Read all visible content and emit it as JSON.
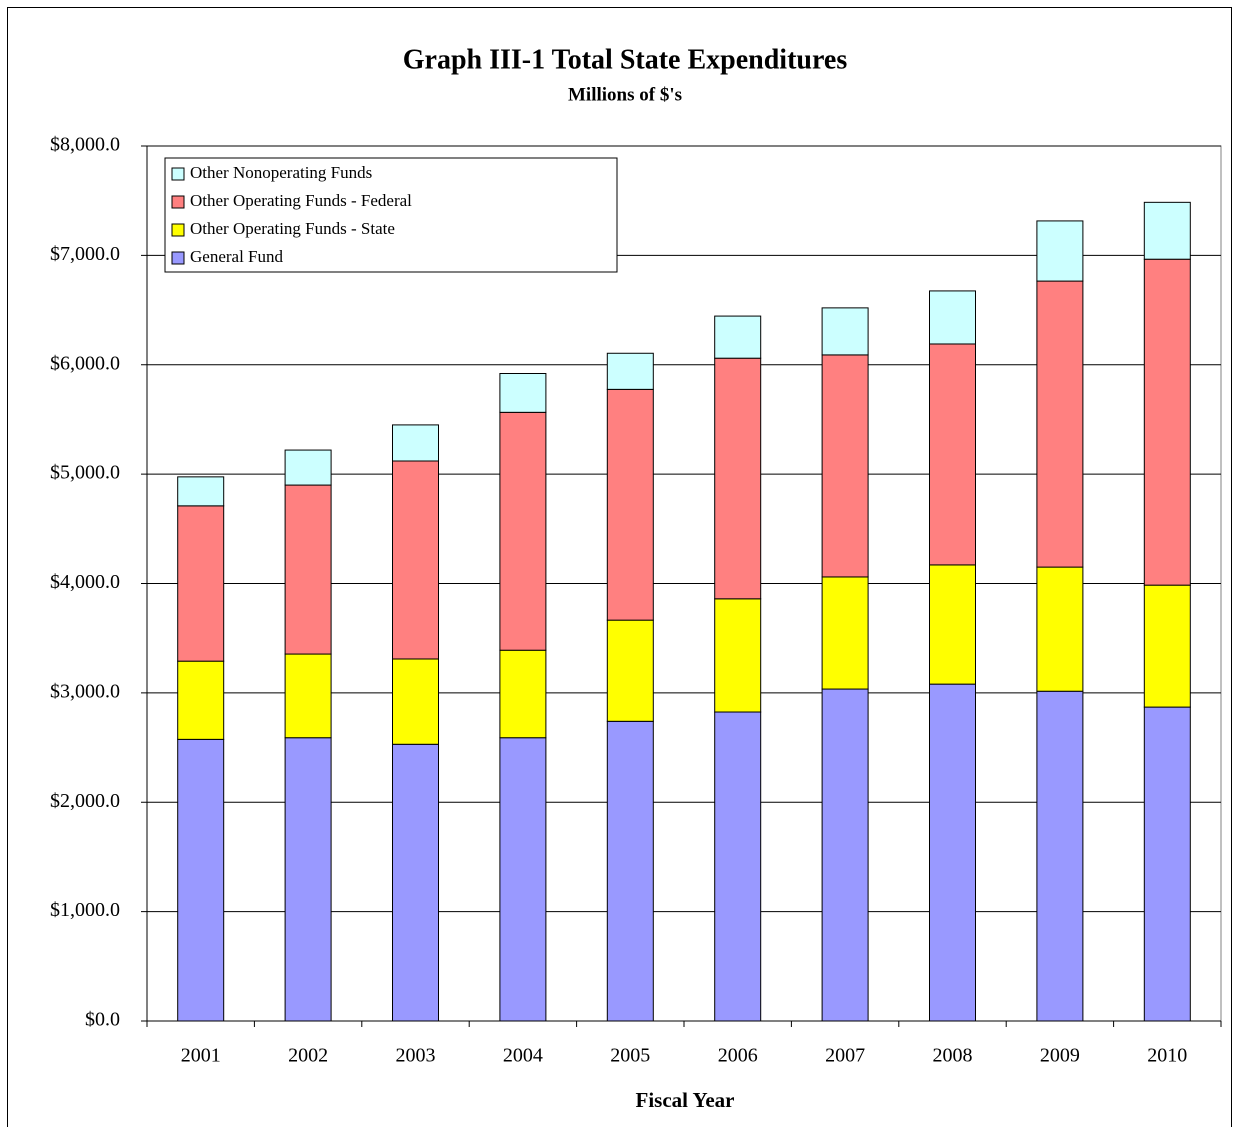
{
  "chart_data": {
    "type": "stacked_bar",
    "title": "Graph III-1  Total State Expenditures",
    "subtitle": "Millions of $'s",
    "x_label": "Fiscal Year",
    "categories": [
      "2001",
      "2002",
      "2003",
      "2004",
      "2005",
      "2006",
      "2007",
      "2008",
      "2009",
      "2010"
    ],
    "series": [
      {
        "name": "General Fund",
        "color": "#9999ff",
        "values": [
          2575,
          2590,
          2530,
          2590,
          2740,
          2825,
          3035,
          3080,
          3015,
          2870
        ]
      },
      {
        "name": "Other Operating Funds - State",
        "color": "#ffff00",
        "values": [
          715,
          765,
          780,
          800,
          925,
          1035,
          1025,
          1090,
          1135,
          1115
        ]
      },
      {
        "name": "Other Operating Funds - Federal",
        "color": "#ff8080",
        "values": [
          1420,
          1545,
          1810,
          2175,
          2110,
          2200,
          2030,
          2020,
          2615,
          2980
        ]
      },
      {
        "name": "Other Nonoperating Funds",
        "color": "#ccffff",
        "values": [
          265,
          320,
          330,
          355,
          330,
          385,
          430,
          485,
          550,
          520
        ]
      }
    ],
    "ylim": [
      0,
      8000
    ],
    "yticks": [
      {
        "value": 0,
        "label": "$0.0"
      },
      {
        "value": 1000,
        "label": "$1,000.0"
      },
      {
        "value": 2000,
        "label": "$2,000.0"
      },
      {
        "value": 3000,
        "label": "$3,000.0"
      },
      {
        "value": 4000,
        "label": "$4,000.0"
      },
      {
        "value": 5000,
        "label": "$5,000.0"
      },
      {
        "value": 6000,
        "label": "$6,000.0"
      },
      {
        "value": 7000,
        "label": "$7,000.0"
      },
      {
        "value": 8000,
        "label": "$8,000.0"
      }
    ],
    "grid": true,
    "legend": "upper left"
  }
}
